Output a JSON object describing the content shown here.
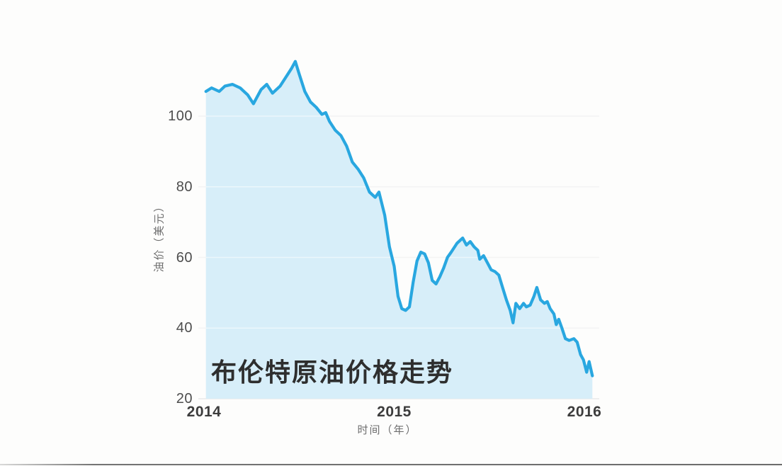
{
  "canvas": {
    "background": "#fdfdfc",
    "bottom_border_color": "#737373"
  },
  "chart_data": {
    "type": "area",
    "title": "布伦特原油价格走势",
    "xlabel": "时间（年）",
    "ylabel": "油价（美元）",
    "x_tick_labels": [
      "2014",
      "2015",
      "2016"
    ],
    "x_tick_years": [
      2014,
      2015,
      2016
    ],
    "y_ticks": [
      100,
      80,
      60,
      40,
      20
    ],
    "xlim": [
      2014.0,
      2016.05
    ],
    "ylim": [
      20,
      120
    ],
    "grid": "horizontal-faint",
    "legend_position": "none",
    "colors": {
      "line": "#29a7e0",
      "fill": "#d7eef9",
      "grid_under": "#e9e9e9",
      "grid_over_fill": "rgba(255,255,255,0.5)",
      "tick_text": "#4d4d4d",
      "axis_title_text": "#6e6e6e",
      "title_text": "#2e2e2e"
    },
    "series": [
      {
        "name": "布伦特原油价格",
        "points": [
          [
            2014.01,
            107
          ],
          [
            2014.04,
            108
          ],
          [
            2014.08,
            107
          ],
          [
            2014.11,
            108.5
          ],
          [
            2014.15,
            109
          ],
          [
            2014.19,
            108
          ],
          [
            2014.23,
            106
          ],
          [
            2014.26,
            103.5
          ],
          [
            2014.3,
            107.5
          ],
          [
            2014.33,
            109
          ],
          [
            2014.36,
            106.5
          ],
          [
            2014.4,
            108.5
          ],
          [
            2014.43,
            111
          ],
          [
            2014.46,
            113.5
          ],
          [
            2014.48,
            115.5
          ],
          [
            2014.5,
            112
          ],
          [
            2014.53,
            107
          ],
          [
            2014.56,
            104
          ],
          [
            2014.59,
            102.5
          ],
          [
            2014.62,
            100.5
          ],
          [
            2014.64,
            101
          ],
          [
            2014.66,
            98.5
          ],
          [
            2014.69,
            96
          ],
          [
            2014.72,
            94.5
          ],
          [
            2014.75,
            91.5
          ],
          [
            2014.78,
            87
          ],
          [
            2014.81,
            85
          ],
          [
            2014.84,
            82.5
          ],
          [
            2014.87,
            78.5
          ],
          [
            2014.9,
            77
          ],
          [
            2014.92,
            78.5
          ],
          [
            2014.95,
            72
          ],
          [
            2014.975,
            63
          ],
          [
            2015.0,
            57.5
          ],
          [
            2015.02,
            49
          ],
          [
            2015.04,
            45.5
          ],
          [
            2015.06,
            45
          ],
          [
            2015.08,
            46
          ],
          [
            2015.1,
            53
          ],
          [
            2015.12,
            59
          ],
          [
            2015.14,
            61.5
          ],
          [
            2015.16,
            61
          ],
          [
            2015.18,
            58.5
          ],
          [
            2015.2,
            53.5
          ],
          [
            2015.22,
            52.5
          ],
          [
            2015.24,
            54.5
          ],
          [
            2015.26,
            57
          ],
          [
            2015.28,
            60
          ],
          [
            2015.3,
            61.5
          ],
          [
            2015.33,
            64
          ],
          [
            2015.36,
            65.5
          ],
          [
            2015.38,
            63.5
          ],
          [
            2015.4,
            64.5
          ],
          [
            2015.42,
            63
          ],
          [
            2015.44,
            62
          ],
          [
            2015.45,
            59.5
          ],
          [
            2015.47,
            60.5
          ],
          [
            2015.49,
            58.5
          ],
          [
            2015.51,
            56.5
          ],
          [
            2015.53,
            56
          ],
          [
            2015.55,
            55
          ],
          [
            2015.57,
            51.5
          ],
          [
            2015.59,
            48
          ],
          [
            2015.61,
            45
          ],
          [
            2015.625,
            41.5
          ],
          [
            2015.64,
            47
          ],
          [
            2015.66,
            45.5
          ],
          [
            2015.68,
            47
          ],
          [
            2015.695,
            46
          ],
          [
            2015.715,
            46.5
          ],
          [
            2015.735,
            49
          ],
          [
            2015.75,
            51.5
          ],
          [
            2015.77,
            48
          ],
          [
            2015.79,
            47
          ],
          [
            2015.805,
            47.5
          ],
          [
            2015.82,
            45.5
          ],
          [
            2015.84,
            44
          ],
          [
            2015.852,
            41
          ],
          [
            2015.865,
            42.5
          ],
          [
            2015.882,
            40
          ],
          [
            2015.9,
            37
          ],
          [
            2015.92,
            36.5
          ],
          [
            2015.945,
            37
          ],
          [
            2015.962,
            36
          ],
          [
            2015.98,
            32.5
          ],
          [
            2015.995,
            31
          ],
          [
            2016.012,
            27.5
          ],
          [
            2016.025,
            30.5
          ],
          [
            2016.042,
            26.5
          ]
        ]
      }
    ]
  }
}
